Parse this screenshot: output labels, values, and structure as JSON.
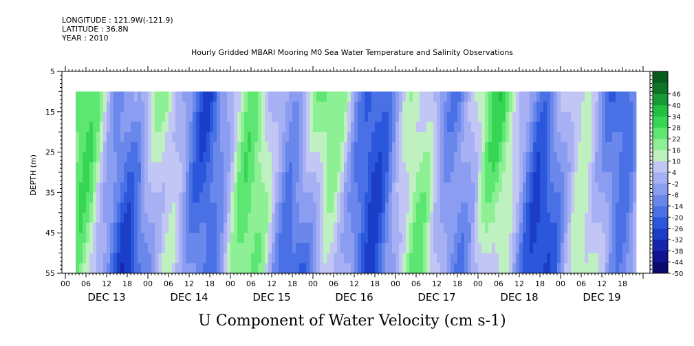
{
  "header": {
    "longitude": "LONGITUDE : 121.9W(-121.9)",
    "latitude": "LATITUDE : 36.8N",
    "year": "YEAR : 2010"
  },
  "chart_data": {
    "type": "heatmap",
    "title": "Hourly Gridded MBARI Mooring M0 Sea Water Temperature and Salinity Observations",
    "xlabel": "U Component of Water Velocity (cm s-1)",
    "ylabel": "DEPTH (m)",
    "y_ticks": [
      5,
      15,
      25,
      35,
      45,
      55
    ],
    "ylim": [
      5,
      55
    ],
    "y_reversed": true,
    "x_hour_ticks": [
      "00",
      "06",
      "12",
      "18",
      "00",
      "06",
      "12",
      "18",
      "00",
      "06",
      "12",
      "18",
      "00",
      "06",
      "12",
      "18",
      "00",
      "06",
      "12",
      "18",
      "00",
      "06",
      "12",
      "18",
      "00",
      "06",
      "12",
      "18"
    ],
    "x_day_labels": [
      "DEC 13",
      "DEC 14",
      "DEC 15",
      "DEC 16",
      "DEC 17",
      "DEC 18",
      "DEC 19"
    ],
    "data_start_hour": 3,
    "data_end_hour": 166,
    "data_depth_range": [
      10,
      55
    ],
    "colorbar": {
      "levels": [
        -50,
        -44,
        -38,
        -32,
        -26,
        -20,
        -14,
        -8,
        -2,
        4,
        10,
        16,
        22,
        28,
        34,
        40,
        46
      ],
      "colors": [
        "#0a0a6e",
        "#11128f",
        "#1525ad",
        "#1a3ec8",
        "#2a57dc",
        "#4a70e6",
        "#6a88ec",
        "#8a9df0",
        "#a7b0f2",
        "#c2c6f4",
        "#bff0c0",
        "#8ef094",
        "#5ee672",
        "#36d654",
        "#22bf42",
        "#179a34",
        "#0f7428",
        "#0a5a1e"
      ]
    },
    "legend": "right"
  }
}
